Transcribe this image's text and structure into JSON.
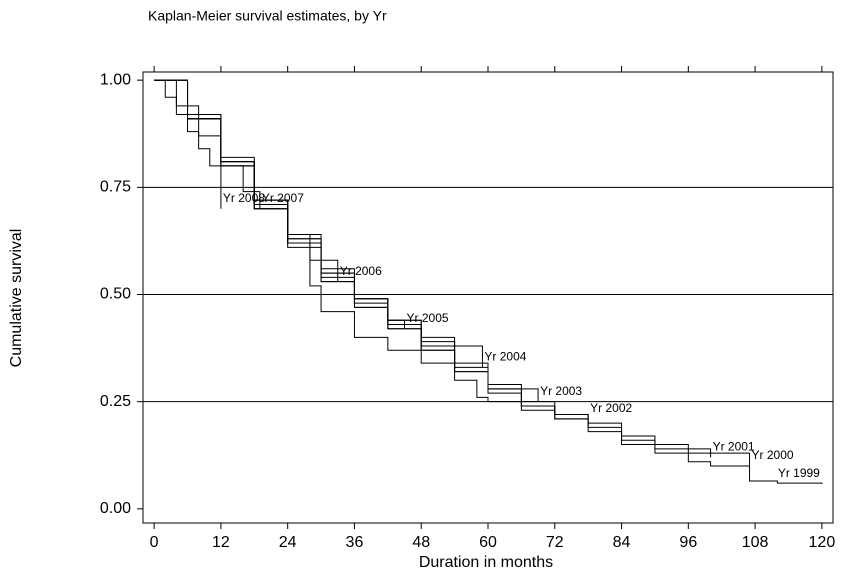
{
  "chart_data": {
    "type": "step",
    "title": "Kaplan-Meier survival estimates, by Yr",
    "x_label": "Duration in months",
    "y_label": "Cumulative survival",
    "xlim": [
      -2,
      122
    ],
    "ylim": [
      -0.033,
      1.019
    ],
    "xticks": [
      0,
      12,
      24,
      36,
      48,
      60,
      72,
      84,
      96,
      108,
      120
    ],
    "yticks": [
      {
        "value": 0,
        "label": "0.00"
      },
      {
        "value": 0.25,
        "label": "0.25"
      },
      {
        "value": 0.5,
        "label": "0.50"
      },
      {
        "value": 0.75,
        "label": "0.75"
      },
      {
        "value": 1,
        "label": "1.00"
      }
    ],
    "grid": true,
    "series": [
      {
        "name": "Yr 2008",
        "color": "#000000",
        "x": [
          0,
          2,
          4,
          6,
          8,
          10,
          12
        ],
        "values": [
          1,
          0.96,
          0.92,
          0.88,
          0.84,
          0.8,
          0.7
        ]
      },
      {
        "name": "Yr 2007",
        "color": "#000000",
        "x": [
          0,
          4,
          8,
          12,
          16,
          19
        ],
        "values": [
          1,
          0.94,
          0.87,
          0.8,
          0.74,
          0.7
        ]
      },
      {
        "name": "Yr 2006",
        "color": "#000000",
        "x": [
          0,
          6,
          12,
          18,
          24,
          28,
          33
        ],
        "values": [
          1,
          0.91,
          0.81,
          0.72,
          0.64,
          0.58,
          0.53
        ]
      },
      {
        "name": "Yr 2005",
        "color": "#000000",
        "x": [
          0,
          6,
          12,
          18,
          24,
          30,
          36,
          42,
          45
        ],
        "values": [
          1,
          0.91,
          0.81,
          0.71,
          0.63,
          0.55,
          0.49,
          0.44,
          0.42
        ]
      },
      {
        "name": "Yr 2004",
        "color": "#000000",
        "x": [
          0,
          6,
          12,
          18,
          24,
          30,
          36,
          42,
          48,
          54,
          59
        ],
        "values": [
          1,
          0.91,
          0.81,
          0.72,
          0.64,
          0.56,
          0.49,
          0.44,
          0.4,
          0.38,
          0.33
        ]
      },
      {
        "name": "Yr 2003",
        "color": "#000000",
        "x": [
          0,
          6,
          12,
          18,
          24,
          30,
          36,
          42,
          48,
          54,
          60,
          69
        ],
        "values": [
          1,
          0.91,
          0.8,
          0.7,
          0.62,
          0.53,
          0.47,
          0.42,
          0.37,
          0.32,
          0.28,
          0.25
        ]
      },
      {
        "name": "Yr 2002",
        "color": "#000000",
        "x": [
          0,
          6,
          12,
          18,
          24,
          30,
          36,
          42,
          48,
          54,
          60,
          66,
          72,
          78
        ],
        "values": [
          1,
          0.91,
          0.8,
          0.7,
          0.63,
          0.55,
          0.49,
          0.44,
          0.39,
          0.34,
          0.29,
          0.25,
          0.22,
          0.21
        ]
      },
      {
        "name": "Yr 2001",
        "color": "#000000",
        "x": [
          0,
          6,
          12,
          18,
          24,
          30,
          36,
          42,
          48,
          54,
          60,
          66,
          72,
          78,
          84,
          90,
          100
        ],
        "values": [
          1,
          0.92,
          0.81,
          0.71,
          0.62,
          0.54,
          0.48,
          0.43,
          0.38,
          0.33,
          0.28,
          0.24,
          0.21,
          0.19,
          0.16,
          0.14,
          0.12
        ]
      },
      {
        "name": "Yr 2000",
        "color": "#000000",
        "x": [
          0,
          6,
          12,
          18,
          24,
          30,
          36,
          42,
          48,
          54,
          60,
          66,
          72,
          78,
          84,
          90,
          96,
          107
        ],
        "values": [
          1,
          0.91,
          0.8,
          0.7,
          0.61,
          0.53,
          0.47,
          0.42,
          0.37,
          0.32,
          0.27,
          0.24,
          0.22,
          0.2,
          0.17,
          0.15,
          0.13,
          0.1
        ]
      },
      {
        "name": "Yr 1999",
        "color": "#000000",
        "x": [
          0,
          6,
          12,
          18,
          24,
          28,
          30,
          36,
          42,
          48,
          54,
          58,
          60,
          66,
          72,
          78,
          84,
          90,
          96,
          100,
          107,
          112,
          120
        ],
        "values": [
          1,
          0.92,
          0.82,
          0.72,
          0.62,
          0.52,
          0.46,
          0.4,
          0.37,
          0.34,
          0.3,
          0.26,
          0.25,
          0.23,
          0.21,
          0.18,
          0.15,
          0.13,
          0.11,
          0.1,
          0.065,
          0.06,
          0.058
        ]
      }
    ]
  }
}
